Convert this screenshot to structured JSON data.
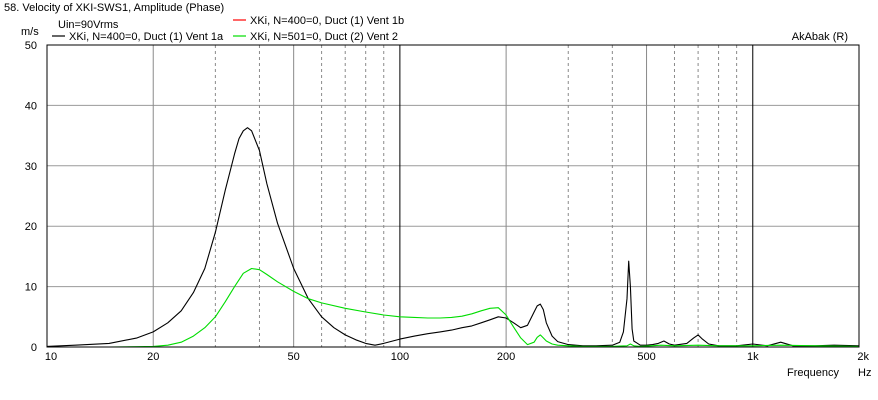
{
  "chart_data": {
    "type": "line",
    "title": "58. Velocity of XKI-SWS1, Amplitude (Phase)",
    "subtitle": "Uin=90Vrms",
    "watermark": "AkAbak (R)",
    "y_unit": "m/s",
    "xlabel": "Frequency",
    "x_unit": "Hz",
    "x_scale": "log",
    "xlim": [
      10,
      2000
    ],
    "ylim": [
      0,
      50
    ],
    "grid": true,
    "x_ticks": [
      {
        "value": 10,
        "label": "10"
      },
      {
        "value": 20,
        "label": "20"
      },
      {
        "value": 50,
        "label": "50"
      },
      {
        "value": 100,
        "label": "100"
      },
      {
        "value": 200,
        "label": "200"
      },
      {
        "value": 500,
        "label": "500"
      },
      {
        "value": 1000,
        "label": "1k"
      },
      {
        "value": 2000,
        "label": "2k"
      }
    ],
    "y_ticks": [
      0,
      10,
      20,
      30,
      40,
      50
    ],
    "legend_placement": "top",
    "series": [
      {
        "name": "XKi, N=400=0, Duct (1) Vent 1a",
        "color": "#000000",
        "x": [
          10,
          12,
          15,
          18,
          20,
          22,
          24,
          26,
          28,
          30,
          32,
          34,
          35,
          36,
          37,
          38,
          40,
          42,
          45,
          50,
          55,
          60,
          65,
          70,
          75,
          80,
          85,
          90,
          100,
          110,
          120,
          130,
          140,
          150,
          160,
          170,
          180,
          190,
          200,
          210,
          220,
          230,
          240,
          245,
          250,
          255,
          260,
          270,
          280,
          300,
          330,
          360,
          400,
          420,
          430,
          440,
          445,
          450,
          455,
          460,
          480,
          500,
          520,
          540,
          560,
          580,
          600,
          650,
          680,
          700,
          720,
          750,
          800,
          900,
          1000,
          1100,
          1200,
          1300,
          1500,
          1700,
          2000
        ],
        "y": [
          0.1,
          0.3,
          0.6,
          1.5,
          2.5,
          4,
          6,
          9,
          13,
          19,
          26,
          32,
          34.5,
          35.8,
          36.3,
          35.8,
          32.5,
          27,
          20.5,
          13,
          8,
          5,
          3.2,
          2,
          1.2,
          0.6,
          0.3,
          0.6,
          1.3,
          1.8,
          2.2,
          2.5,
          2.8,
          3.2,
          3.5,
          4,
          4.5,
          5,
          4.8,
          4,
          3.2,
          3.6,
          5.8,
          6.8,
          7.1,
          6.2,
          4,
          1.8,
          0.9,
          0.4,
          0.2,
          0.2,
          0.3,
          0.8,
          2.5,
          8,
          14.2,
          10,
          3,
          1,
          0.3,
          0.3,
          0.4,
          0.6,
          1,
          0.5,
          0.3,
          0.6,
          1.5,
          2,
          1.3,
          0.5,
          0.2,
          0.2,
          0.5,
          0.2,
          0.8,
          0.2,
          0.2,
          0.3,
          0.2
        ]
      },
      {
        "name": "XKi, N=400=0, Duct (1) Vent 1b",
        "color": "#ff0000",
        "x": [],
        "y": []
      },
      {
        "name": "XKi, N=501=0, Duct (2) Vent 2",
        "color": "#00dd00",
        "x": [
          10,
          12,
          15,
          18,
          20,
          22,
          24,
          26,
          28,
          30,
          32,
          34,
          36,
          38,
          40,
          42,
          45,
          50,
          55,
          60,
          70,
          80,
          90,
          100,
          110,
          120,
          130,
          140,
          150,
          160,
          170,
          180,
          190,
          200,
          210,
          220,
          230,
          240,
          245,
          250,
          255,
          260,
          270,
          280,
          300,
          330,
          400,
          420,
          440,
          450,
          460,
          480,
          500,
          550,
          600,
          700,
          800,
          1000,
          1200,
          1500,
          2000
        ],
        "y": [
          0,
          0,
          0,
          0.05,
          0.1,
          0.3,
          0.8,
          1.8,
          3.2,
          5,
          7.5,
          10,
          12.2,
          13,
          12.8,
          12,
          10.8,
          9.2,
          8,
          7.3,
          6.4,
          5.8,
          5.3,
          5,
          4.9,
          4.8,
          4.8,
          4.9,
          5.1,
          5.5,
          6,
          6.4,
          6.5,
          5.3,
          3.3,
          1.5,
          0.4,
          0.8,
          1.6,
          2,
          1.5,
          1,
          0.5,
          0.3,
          0.2,
          0.1,
          0.1,
          0.15,
          0.2,
          0.5,
          0.2,
          0.1,
          0.15,
          0.3,
          0.2,
          0.3,
          0.2,
          0.2,
          0.3,
          0.2,
          0.1
        ]
      }
    ]
  }
}
